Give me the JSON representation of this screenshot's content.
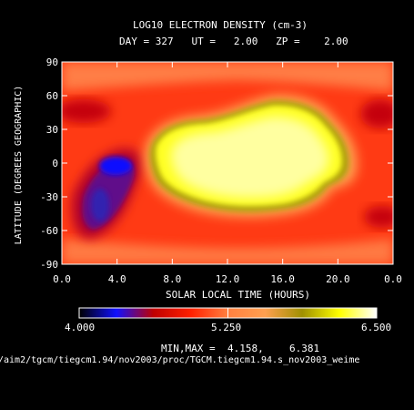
{
  "chart_data": {
    "type": "heatmap",
    "title": "LOG10 ELECTRON DENSITY (cm-3)",
    "subtitle": "DAY = 327   UT =   2.00   ZP =    2.00",
    "xlabel": "SOLAR LOCAL TIME (HOURS)",
    "ylabel": "LATITUDE (DEGREES GEOGRAPHIC)",
    "x_range": [
      0,
      24
    ],
    "x_ticks": [
      "0.0",
      "4.0",
      "8.0",
      "12.0",
      "16.0",
      "20.0",
      "0.0"
    ],
    "y_range": [
      -90,
      90
    ],
    "y_ticks": [
      "90",
      "60",
      "30",
      "0",
      "-30",
      "-60",
      "-90"
    ],
    "colorbar": {
      "min": 4.0,
      "max": 6.5,
      "tick_labels": [
        "4.000",
        "5.250",
        "6.500"
      ],
      "colors": [
        "#000000",
        "#1010ff",
        "#c00000",
        "#ff2000",
        "#ff8040",
        "#ffa050",
        "#a09000",
        "#ffff00",
        "#ffffff"
      ]
    },
    "min_max_label": "MIN,MAX =",
    "min_value": "4.158,",
    "max_value": "6.381",
    "file_path": "/aim2/tgcm/tiegcm1.94/nov2003/proc/TGCM.tiegcm1.94.s_nov2003_weime"
  }
}
